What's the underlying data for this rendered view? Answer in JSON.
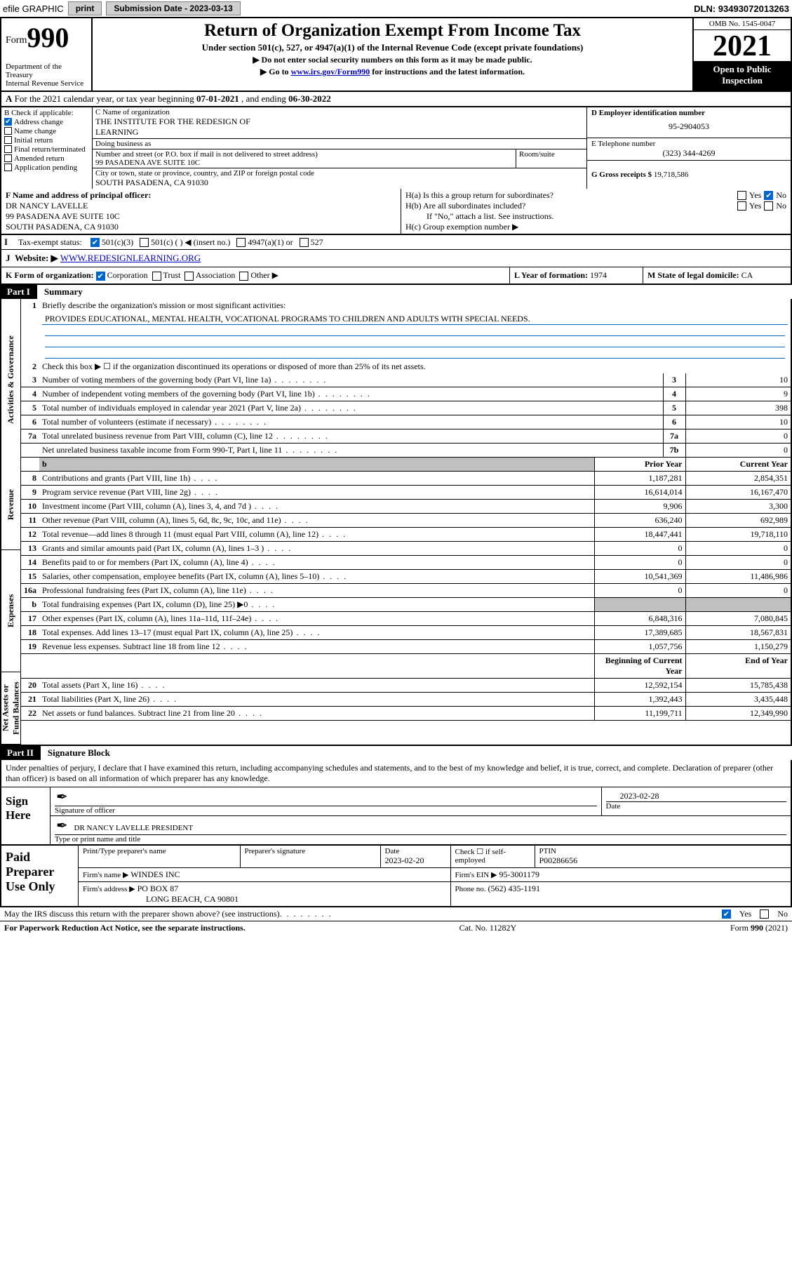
{
  "header": {
    "efile": "efile GRAPHIC",
    "print_btn": "print",
    "submission_label": "Submission Date - ",
    "submission_date": "2023-03-13",
    "dln": "DLN: 93493072013263"
  },
  "title_box": {
    "form_prefix": "Form",
    "form_no": "990",
    "dept": "Department of the Treasury\nInternal Revenue Service",
    "main": "Return of Organization Exempt From Income Tax",
    "sub1": "Under section 501(c), 527, or 4947(a)(1) of the Internal Revenue Code (except private foundations)",
    "sub2": "▶ Do not enter social security numbers on this form as it may be made public.",
    "sub3_pre": "▶ Go to ",
    "sub3_link": "www.irs.gov/Form990",
    "sub3_post": " for instructions and the latest information.",
    "omb": "OMB No. 1545-0047",
    "year": "2021",
    "open": "Open to Public\nInspection"
  },
  "row_A": {
    "label_A": "A",
    "text": "For the 2021 calendar year, or tax year beginning ",
    "begin": "07-01-2021",
    "mid": " , and ending ",
    "end": "06-30-2022"
  },
  "col_B": {
    "label": "B Check if applicable:",
    "items": [
      {
        "checked": true,
        "label": "Address change"
      },
      {
        "checked": false,
        "label": "Name change"
      },
      {
        "checked": false,
        "label": "Initial return"
      },
      {
        "checked": false,
        "label": "Final return/terminated"
      },
      {
        "checked": false,
        "label": "Amended return"
      },
      {
        "checked": false,
        "label": "Application pending"
      }
    ]
  },
  "col_C": {
    "name_label": "C Name of organization",
    "name": "THE INSTITUTE FOR THE REDESIGN OF\nLEARNING",
    "dba_label": "Doing business as",
    "dba": "",
    "street_label": "Number and street (or P.O. box if mail is not delivered to street address)",
    "suite_label": "Room/suite",
    "street": "99 PASADENA AVE SUITE 10C",
    "city_label": "City or town, state or province, country, and ZIP or foreign postal code",
    "city": "SOUTH PASADENA, CA  91030"
  },
  "col_D": {
    "ein_label": "D Employer identification number",
    "ein": "95-2904053",
    "phone_label": "E Telephone number",
    "phone": "(323) 344-4269",
    "gross_label": "G Gross receipts $",
    "gross": "19,718,586"
  },
  "row_F": {
    "label": "F Name and address of principal officer:",
    "name": "DR NANCY LAVELLE",
    "addr1": "99 PASADENA AVE SUITE 10C",
    "addr2": "SOUTH PASADENA, CA  91030"
  },
  "row_H": {
    "a_label": "H(a)  Is this a group return for subordinates?",
    "a_yes": "Yes",
    "a_no": "No",
    "a_checked": "no",
    "b_label": "H(b)  Are all subordinates included?",
    "b_yes": "Yes",
    "b_no": "No",
    "b_note": "If \"No,\" attach a list. See instructions.",
    "c_label": "H(c)  Group exemption number ▶"
  },
  "row_I": {
    "label": "Tax-exempt status:",
    "opts": [
      "501(c)(3)",
      "501(c) (  ) ◀ (insert no.)",
      "4947(a)(1) or",
      "527"
    ],
    "checked_idx": 0
  },
  "row_J": {
    "label": "Website: ▶",
    "url": "WWW.REDESIGNLEARNING.ORG"
  },
  "row_K": {
    "label": "K Form of organization:",
    "opts": [
      "Corporation",
      "Trust",
      "Association",
      "Other ▶"
    ],
    "checked_idx": 0,
    "L_label": "L Year of formation:",
    "L_val": "1974",
    "M_label": "M State of legal domicile:",
    "M_val": "CA"
  },
  "part1": {
    "hdr_tag": "Part I",
    "hdr_ttl": "Summary"
  },
  "side": {
    "gov": "Activities & Governance",
    "rev": "Revenue",
    "exp": "Expenses",
    "net": "Net Assets or\nFund Balances"
  },
  "summary": {
    "line1_label": "Briefly describe the organization's mission or most significant activities:",
    "line1_text": "PROVIDES EDUCATIONAL, MENTAL HEALTH, VOCATIONAL PROGRAMS TO CHILDREN AND ADULTS WITH SPECIAL NEEDS.",
    "line2": "Check this box ▶ ☐  if the organization discontinued its operations or disposed of more than 25% of its net assets.",
    "rows_gov": [
      {
        "n": "3",
        "d": "Number of voting members of the governing body (Part VI, line 1a)",
        "box": "3",
        "v": "10"
      },
      {
        "n": "4",
        "d": "Number of independent voting members of the governing body (Part VI, line 1b)",
        "box": "4",
        "v": "9"
      },
      {
        "n": "5",
        "d": "Total number of individuals employed in calendar year 2021 (Part V, line 2a)",
        "box": "5",
        "v": "398"
      },
      {
        "n": "6",
        "d": "Total number of volunteers (estimate if necessary)",
        "box": "6",
        "v": "10"
      },
      {
        "n": "7a",
        "d": "Total unrelated business revenue from Part VIII, column (C), line 12",
        "box": "7a",
        "v": "0"
      },
      {
        "n": "",
        "d": "Net unrelated business taxable income from Form 990-T, Part I, line 11",
        "box": "7b",
        "v": "0"
      }
    ],
    "col_prior": "Prior Year",
    "col_curr": "Current Year",
    "rows_rev": [
      {
        "n": "8",
        "d": "Contributions and grants (Part VIII, line 1h)",
        "p": "1,187,281",
        "c": "2,854,351"
      },
      {
        "n": "9",
        "d": "Program service revenue (Part VIII, line 2g)",
        "p": "16,614,014",
        "c": "16,167,470"
      },
      {
        "n": "10",
        "d": "Investment income (Part VIII, column (A), lines 3, 4, and 7d )",
        "p": "9,906",
        "c": "3,300"
      },
      {
        "n": "11",
        "d": "Other revenue (Part VIII, column (A), lines 5, 6d, 8c, 9c, 10c, and 11e)",
        "p": "636,240",
        "c": "692,989"
      },
      {
        "n": "12",
        "d": "Total revenue—add lines 8 through 11 (must equal Part VIII, column (A), line 12)",
        "p": "18,447,441",
        "c": "19,718,110"
      }
    ],
    "rows_exp": [
      {
        "n": "13",
        "d": "Grants and similar amounts paid (Part IX, column (A), lines 1–3 )",
        "p": "0",
        "c": "0"
      },
      {
        "n": "14",
        "d": "Benefits paid to or for members (Part IX, column (A), line 4)",
        "p": "0",
        "c": "0"
      },
      {
        "n": "15",
        "d": "Salaries, other compensation, employee benefits (Part IX, column (A), lines 5–10)",
        "p": "10,541,369",
        "c": "11,486,986"
      },
      {
        "n": "16a",
        "d": "Professional fundraising fees (Part IX, column (A), line 11e)",
        "p": "0",
        "c": "0"
      },
      {
        "n": "b",
        "d": "Total fundraising expenses (Part IX, column (D), line 25) ▶0",
        "p": "",
        "c": "",
        "shade": true
      },
      {
        "n": "17",
        "d": "Other expenses (Part IX, column (A), lines 11a–11d, 11f–24e)",
        "p": "6,848,316",
        "c": "7,080,845"
      },
      {
        "n": "18",
        "d": "Total expenses. Add lines 13–17 (must equal Part IX, column (A), line 25)",
        "p": "17,389,685",
        "c": "18,567,831"
      },
      {
        "n": "19",
        "d": "Revenue less expenses. Subtract line 18 from line 12",
        "p": "1,057,756",
        "c": "1,150,279"
      }
    ],
    "col_begin": "Beginning of Current Year",
    "col_end": "End of Year",
    "rows_net": [
      {
        "n": "20",
        "d": "Total assets (Part X, line 16)",
        "p": "12,592,154",
        "c": "15,785,438"
      },
      {
        "n": "21",
        "d": "Total liabilities (Part X, line 26)",
        "p": "1,392,443",
        "c": "3,435,448"
      },
      {
        "n": "22",
        "d": "Net assets or fund balances. Subtract line 21 from line 20",
        "p": "11,199,711",
        "c": "12,349,990"
      }
    ]
  },
  "part2": {
    "hdr_tag": "Part II",
    "hdr_ttl": "Signature Block",
    "intro": "Under penalties of perjury, I declare that I have examined this return, including accompanying schedules and statements, and to the best of my knowledge and belief, it is true, correct, and complete. Declaration of preparer (other than officer) is based on all information of which preparer has any knowledge."
  },
  "sign": {
    "left": "Sign\nHere",
    "sig_label": "Signature of officer",
    "date_label": "Date",
    "date": "2023-02-28",
    "name": "DR NANCY LAVELLE  PRESIDENT",
    "name_label": "Type or print name and title"
  },
  "paid": {
    "left": "Paid\nPreparer\nUse Only",
    "r1": {
      "c1_lbl": "Print/Type preparer's name",
      "c1": "",
      "c2_lbl": "Preparer's signature",
      "c2": "",
      "c3_lbl": "Date",
      "c3": "2023-02-20",
      "c4_lbl": "Check ☐ if self-employed",
      "c5_lbl": "PTIN",
      "c5": "P00286656"
    },
    "r2": {
      "c1_lbl": "Firm's name   ▶",
      "c1": "WINDES INC",
      "c2_lbl": "Firm's EIN ▶",
      "c2": "95-3001179"
    },
    "r3": {
      "c1_lbl": "Firm's address ▶",
      "c1": "PO BOX 87",
      "c1b": "LONG BEACH, CA  90801",
      "c2_lbl": "Phone no.",
      "c2": "(562) 435-1191"
    }
  },
  "footer": {
    "discuss": "May the IRS discuss this return with the preparer shown above? (see instructions)",
    "yes": "Yes",
    "no": "No",
    "checked": "yes",
    "pra": "For Paperwork Reduction Act Notice, see the separate instructions.",
    "cat": "Cat. No. 11282Y",
    "form": "Form 990 (2021)"
  }
}
